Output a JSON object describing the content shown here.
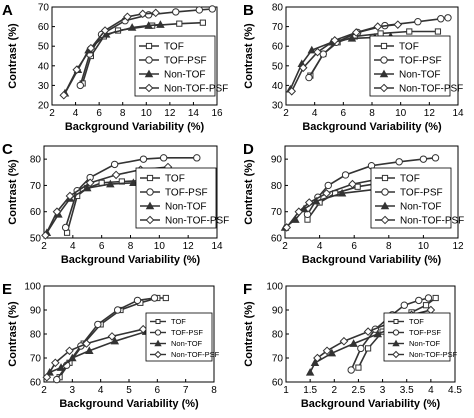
{
  "chart_data": [
    {
      "panel": "A",
      "type": "line",
      "xlabel": "Background Variability (%)",
      "ylabel": "Contrast (%)",
      "xlim": [
        2,
        16
      ],
      "ylim": [
        20,
        70
      ],
      "xticks": [
        2,
        4,
        6,
        8,
        10,
        12,
        14,
        16
      ],
      "yticks": [
        20,
        30,
        40,
        50,
        60,
        70
      ],
      "grid": false,
      "legend": "bottom-right",
      "series": [
        {
          "name": "TOF",
          "marker": "square",
          "points": [
            [
              4.6,
              31
            ],
            [
              5.3,
              45
            ],
            [
              6.4,
              55
            ],
            [
              7.6,
              58
            ],
            [
              10.5,
              60.5
            ],
            [
              12.8,
              61.5
            ],
            [
              14.8,
              62
            ]
          ]
        },
        {
          "name": "TOF-PSF",
          "marker": "circle",
          "points": [
            [
              4.4,
              30
            ],
            [
              5.2,
              46
            ],
            [
              6.2,
              56
            ],
            [
              8.2,
              63
            ],
            [
              10.2,
              66
            ],
            [
              12.5,
              67.5
            ],
            [
              14.5,
              68.5
            ],
            [
              15.6,
              69
            ]
          ]
        },
        {
          "name": "Non-TOF",
          "marker": "triangle",
          "points": [
            [
              3.1,
              26
            ],
            [
              4.2,
              38
            ],
            [
              5.1,
              48
            ],
            [
              6.6,
              56
            ],
            [
              8.8,
              59.5
            ],
            [
              10.2,
              60.5
            ],
            [
              11.2,
              61
            ]
          ]
        },
        {
          "name": "Non-TOF-PSF",
          "marker": "diamond",
          "points": [
            [
              3.0,
              25
            ],
            [
              4.1,
              38
            ],
            [
              5.3,
              49
            ],
            [
              6.5,
              58
            ],
            [
              8.4,
              65
            ],
            [
              9.7,
              66.5
            ],
            [
              10.8,
              67
            ]
          ]
        }
      ]
    },
    {
      "panel": "B",
      "type": "line",
      "xlabel": "Background Variability (%)",
      "ylabel": "Contrast (%)",
      "xlim": [
        2,
        14
      ],
      "ylim": [
        30,
        80
      ],
      "xticks": [
        2,
        4,
        6,
        8,
        10,
        12,
        14
      ],
      "yticks": [
        30,
        40,
        50,
        60,
        70,
        80
      ],
      "grid": false,
      "legend": "bottom-right",
      "series": [
        {
          "name": "TOF",
          "marker": "square",
          "points": [
            [
              3.7,
              45
            ],
            [
              4.6,
              56
            ],
            [
              5.6,
              62
            ],
            [
              6.8,
              65
            ],
            [
              8.6,
              66.5
            ],
            [
              10.6,
              67.5
            ],
            [
              12.6,
              67.5
            ]
          ]
        },
        {
          "name": "TOF-PSF",
          "marker": "circle",
          "points": [
            [
              3.6,
              44
            ],
            [
              4.6,
              56
            ],
            [
              5.5,
              62
            ],
            [
              7.0,
              67
            ],
            [
              8.9,
              70.5
            ],
            [
              11.2,
              72.5
            ],
            [
              12.8,
              74
            ],
            [
              13.3,
              74.5
            ]
          ]
        },
        {
          "name": "Non-TOF",
          "marker": "triangle",
          "points": [
            [
              2.3,
              38
            ],
            [
              3.1,
              51
            ],
            [
              3.8,
              58
            ],
            [
              5.2,
              62
            ],
            [
              6.6,
              64
            ],
            [
              8.2,
              64.5
            ],
            [
              9.3,
              65
            ]
          ]
        },
        {
          "name": "Non-TOF-PSF",
          "marker": "diamond",
          "points": [
            [
              2.4,
              37
            ],
            [
              3.2,
              49
            ],
            [
              4.2,
              57
            ],
            [
              5.4,
              63
            ],
            [
              6.9,
              67
            ],
            [
              8.4,
              70
            ],
            [
              9.8,
              71
            ]
          ]
        }
      ]
    },
    {
      "panel": "C",
      "type": "line",
      "xlabel": "Background Variability (%)",
      "ylabel": "Contrast (%)",
      "xlim": [
        2,
        14
      ],
      "ylim": [
        50,
        85
      ],
      "xticks": [
        2,
        4,
        6,
        8,
        10,
        12,
        14
      ],
      "yticks": [
        50,
        60,
        70,
        80
      ],
      "grid": false,
      "legend": "bottom-right",
      "series": [
        {
          "name": "TOF",
          "marker": "square",
          "points": [
            [
              3.6,
              52
            ],
            [
              4.3,
              66
            ],
            [
              5.0,
              69
            ],
            [
              6.0,
              71
            ],
            [
              7.4,
              71.5
            ],
            [
              9.6,
              72
            ],
            [
              12.8,
              72
            ]
          ]
        },
        {
          "name": "TOF-PSF",
          "marker": "circle",
          "points": [
            [
              3.5,
              54
            ],
            [
              4.3,
              68
            ],
            [
              5.2,
              73
            ],
            [
              6.9,
              78
            ],
            [
              8.9,
              80
            ],
            [
              10.3,
              80.5
            ],
            [
              12.6,
              80.5
            ]
          ]
        },
        {
          "name": "Non-TOF",
          "marker": "triangle",
          "points": [
            [
              2.2,
              52
            ],
            [
              3.0,
              59
            ],
            [
              3.8,
              65
            ],
            [
              5.0,
              69
            ],
            [
              6.6,
              70.5
            ],
            [
              8.2,
              71
            ],
            [
              9.6,
              71
            ]
          ]
        },
        {
          "name": "Non-TOF-PSF",
          "marker": "diamond",
          "points": [
            [
              2.1,
              51
            ],
            [
              2.9,
              60
            ],
            [
              3.8,
              66
            ],
            [
              5.2,
              71
            ],
            [
              7.0,
              74
            ],
            [
              8.7,
              76
            ],
            [
              10.6,
              77
            ]
          ]
        }
      ]
    },
    {
      "panel": "D",
      "type": "line",
      "xlabel": "Background Variability (%)",
      "ylabel": "Contrast (%)",
      "xlim": [
        2,
        12
      ],
      "ylim": [
        60,
        95
      ],
      "xticks": [
        2,
        4,
        6,
        8,
        10,
        12
      ],
      "yticks": [
        60,
        70,
        80,
        90
      ],
      "grid": false,
      "legend": "bottom-right",
      "series": [
        {
          "name": "TOF",
          "marker": "square",
          "points": [
            [
              3.3,
              67
            ],
            [
              4.0,
              73.5
            ],
            [
              4.9,
              77
            ],
            [
              6.2,
              79.5
            ],
            [
              7.6,
              81
            ],
            [
              9.2,
              82
            ],
            [
              10.7,
              83
            ]
          ]
        },
        {
          "name": "TOF-PSF",
          "marker": "circle",
          "points": [
            [
              3.3,
              69
            ],
            [
              3.9,
              75.5
            ],
            [
              4.5,
              80
            ],
            [
              5.5,
              84
            ],
            [
              7.0,
              87.5
            ],
            [
              8.6,
              89
            ],
            [
              10.0,
              90
            ],
            [
              10.7,
              90.5
            ]
          ]
        },
        {
          "name": "Non-TOF",
          "marker": "triangle",
          "points": [
            [
              2.0,
              64
            ],
            [
              2.6,
              67
            ],
            [
              3.1,
              71
            ],
            [
              3.8,
              74
            ],
            [
              5.3,
              77
            ],
            [
              7.2,
              78.5
            ],
            [
              9.6,
              80
            ]
          ]
        },
        {
          "name": "Non-TOF-PSF",
          "marker": "diamond",
          "points": [
            [
              2.1,
              64
            ],
            [
              2.8,
              70
            ],
            [
              3.4,
              73.5
            ],
            [
              4.4,
              77
            ],
            [
              5.9,
              80.5
            ],
            [
              7.9,
              83
            ],
            [
              10.2,
              84.5
            ]
          ]
        }
      ]
    },
    {
      "panel": "E",
      "type": "line",
      "xlabel": "Background Variability (%)",
      "ylabel": "Contrast (%)",
      "xlim": [
        2,
        8
      ],
      "ylim": [
        60,
        100
      ],
      "xticks": [
        2,
        3,
        4,
        5,
        6,
        7,
        8
      ],
      "yticks": [
        60,
        70,
        80,
        90,
        100
      ],
      "grid": false,
      "legend": "bottom-right",
      "series": [
        {
          "name": "TOF",
          "marker": "square",
          "points": [
            [
              2.55,
              62
            ],
            [
              2.9,
              68
            ],
            [
              3.4,
              76
            ],
            [
              4.0,
              84
            ],
            [
              4.7,
              90
            ],
            [
              5.4,
              93
            ],
            [
              6.0,
              95
            ],
            [
              6.3,
              95
            ]
          ]
        },
        {
          "name": "TOF-PSF",
          "marker": "circle",
          "points": [
            [
              2.45,
              61
            ],
            [
              2.8,
              67
            ],
            [
              3.3,
              75
            ],
            [
              3.9,
              84
            ],
            [
              4.6,
              90
            ],
            [
              5.3,
              94
            ],
            [
              5.9,
              95
            ]
          ]
        },
        {
          "name": "Non-TOF",
          "marker": "triangle",
          "points": [
            [
              2.2,
              64
            ],
            [
              2.6,
              66
            ],
            [
              3.0,
              70
            ],
            [
              3.6,
              73
            ],
            [
              4.5,
              77
            ],
            [
              5.6,
              81
            ],
            [
              6.7,
              83
            ],
            [
              7.6,
              85
            ]
          ]
        },
        {
          "name": "Non-TOF-PSF",
          "marker": "diamond",
          "points": [
            [
              2.1,
              62
            ],
            [
              2.4,
              68
            ],
            [
              2.9,
              73
            ],
            [
              3.5,
              76
            ],
            [
              4.4,
              79
            ],
            [
              5.5,
              82
            ],
            [
              6.3,
              84
            ],
            [
              7.2,
              86
            ]
          ]
        }
      ]
    },
    {
      "panel": "F",
      "type": "line",
      "xlabel": "Background Variability (%)",
      "ylabel": "Contrast (%)",
      "xlim": [
        1,
        4.5
      ],
      "ylim": [
        60,
        100
      ],
      "xticks": [
        1,
        1.5,
        2,
        2.5,
        3,
        3.5,
        4,
        4.5
      ],
      "yticks": [
        60,
        70,
        80,
        90,
        100
      ],
      "grid": false,
      "legend": "bottom-right",
      "series": [
        {
          "name": "TOF",
          "marker": "square",
          "points": [
            [
              2.5,
              66
            ],
            [
              2.7,
              74
            ],
            [
              3.0,
              81
            ],
            [
              3.3,
              86
            ],
            [
              3.6,
              89
            ],
            [
              3.9,
              92
            ],
            [
              4.1,
              95
            ]
          ]
        },
        {
          "name": "TOF-PSF",
          "marker": "circle",
          "points": [
            [
              2.35,
              65
            ],
            [
              2.55,
              74
            ],
            [
              2.85,
              82
            ],
            [
              3.2,
              88
            ],
            [
              3.45,
              92
            ],
            [
              3.75,
              94
            ],
            [
              3.95,
              95
            ]
          ]
        },
        {
          "name": "Non-TOF",
          "marker": "triangle",
          "points": [
            [
              1.5,
              64
            ],
            [
              1.6,
              68
            ],
            [
              1.95,
              72
            ],
            [
              2.4,
              76
            ],
            [
              2.9,
              80
            ],
            [
              3.4,
              84
            ],
            [
              3.9,
              87
            ]
          ]
        },
        {
          "name": "Non-TOF-PSF",
          "marker": "diamond",
          "points": [
            [
              1.65,
              70
            ],
            [
              1.85,
              73
            ],
            [
              2.2,
              77
            ],
            [
              2.7,
              81
            ],
            [
              3.2,
              85
            ],
            [
              3.6,
              88
            ],
            [
              4.0,
              90
            ]
          ]
        }
      ]
    }
  ]
}
